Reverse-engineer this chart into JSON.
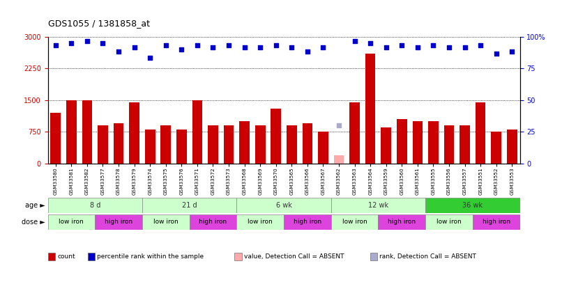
{
  "title": "GDS1055 / 1381858_at",
  "samples": [
    "GSM33580",
    "GSM33581",
    "GSM33582",
    "GSM33577",
    "GSM33578",
    "GSM33579",
    "GSM33574",
    "GSM33575",
    "GSM33576",
    "GSM33571",
    "GSM33572",
    "GSM33573",
    "GSM33568",
    "GSM33569",
    "GSM33570",
    "GSM33565",
    "GSM33566",
    "GSM33567",
    "GSM33562",
    "GSM33563",
    "GSM33564",
    "GSM33559",
    "GSM33560",
    "GSM33561",
    "GSM33555",
    "GSM33556",
    "GSM33557",
    "GSM33551",
    "GSM33552",
    "GSM33553"
  ],
  "bar_values": [
    1200,
    1500,
    1500,
    900,
    950,
    1450,
    800,
    900,
    800,
    1500,
    900,
    900,
    1000,
    900,
    1300,
    900,
    950,
    750,
    200,
    1450,
    2600,
    850,
    1050,
    1000,
    1000,
    900,
    900,
    1450,
    750,
    800
  ],
  "bar_absent": [
    false,
    false,
    false,
    false,
    false,
    false,
    false,
    false,
    false,
    false,
    false,
    false,
    false,
    false,
    false,
    false,
    false,
    false,
    true,
    false,
    false,
    false,
    false,
    false,
    false,
    false,
    false,
    false,
    false,
    false
  ],
  "dot_values": [
    2800,
    2850,
    2900,
    2850,
    2650,
    2750,
    2500,
    2800,
    2700,
    2800,
    2750,
    2800,
    2750,
    2750,
    2800,
    2750,
    2650,
    2750,
    900,
    2900,
    2850,
    2750,
    2800,
    2750,
    2800,
    2750,
    2750,
    2800,
    2600,
    2650
  ],
  "dot_absent": [
    false,
    false,
    false,
    false,
    false,
    false,
    false,
    false,
    false,
    false,
    false,
    false,
    false,
    false,
    false,
    false,
    false,
    false,
    true,
    false,
    false,
    false,
    false,
    false,
    false,
    false,
    false,
    false,
    false,
    false
  ],
  "ylim_left": [
    0,
    3000
  ],
  "ylim_right": [
    0,
    100
  ],
  "yticks_left": [
    0,
    750,
    1500,
    2250,
    3000
  ],
  "yticks_right": [
    0,
    25,
    50,
    75,
    100
  ],
  "bar_color": "#cc0000",
  "bar_absent_color": "#ffaaaa",
  "dot_color": "#0000cc",
  "dot_absent_color": "#aaaacc",
  "bg_color": "#ffffff",
  "age_groups": [
    {
      "label": "8 d",
      "start": 0,
      "end": 6,
      "color": "#ccffcc"
    },
    {
      "label": "21 d",
      "start": 6,
      "end": 12,
      "color": "#ccffcc"
    },
    {
      "label": "6 wk",
      "start": 12,
      "end": 18,
      "color": "#ccffcc"
    },
    {
      "label": "12 wk",
      "start": 18,
      "end": 24,
      "color": "#ccffcc"
    },
    {
      "label": "36 wk",
      "start": 24,
      "end": 30,
      "color": "#33cc33"
    }
  ],
  "dose_groups": [
    {
      "label": "low iron",
      "start": 0,
      "end": 3,
      "color": "#ccffcc"
    },
    {
      "label": "high iron",
      "start": 3,
      "end": 6,
      "color": "#dd44dd"
    },
    {
      "label": "low iron",
      "start": 6,
      "end": 9,
      "color": "#ccffcc"
    },
    {
      "label": "high iron",
      "start": 9,
      "end": 12,
      "color": "#dd44dd"
    },
    {
      "label": "low iron",
      "start": 12,
      "end": 15,
      "color": "#ccffcc"
    },
    {
      "label": "high iron",
      "start": 15,
      "end": 18,
      "color": "#dd44dd"
    },
    {
      "label": "low iron",
      "start": 18,
      "end": 21,
      "color": "#ccffcc"
    },
    {
      "label": "high iron",
      "start": 21,
      "end": 24,
      "color": "#dd44dd"
    },
    {
      "label": "low iron",
      "start": 24,
      "end": 27,
      "color": "#ccffcc"
    },
    {
      "label": "high iron",
      "start": 27,
      "end": 30,
      "color": "#dd44dd"
    }
  ],
  "legend_items": [
    {
      "label": "count",
      "color": "#cc0000"
    },
    {
      "label": "percentile rank within the sample",
      "color": "#0000cc"
    },
    {
      "label": "value, Detection Call = ABSENT",
      "color": "#ffaaaa"
    },
    {
      "label": "rank, Detection Call = ABSENT",
      "color": "#aaaacc"
    }
  ]
}
